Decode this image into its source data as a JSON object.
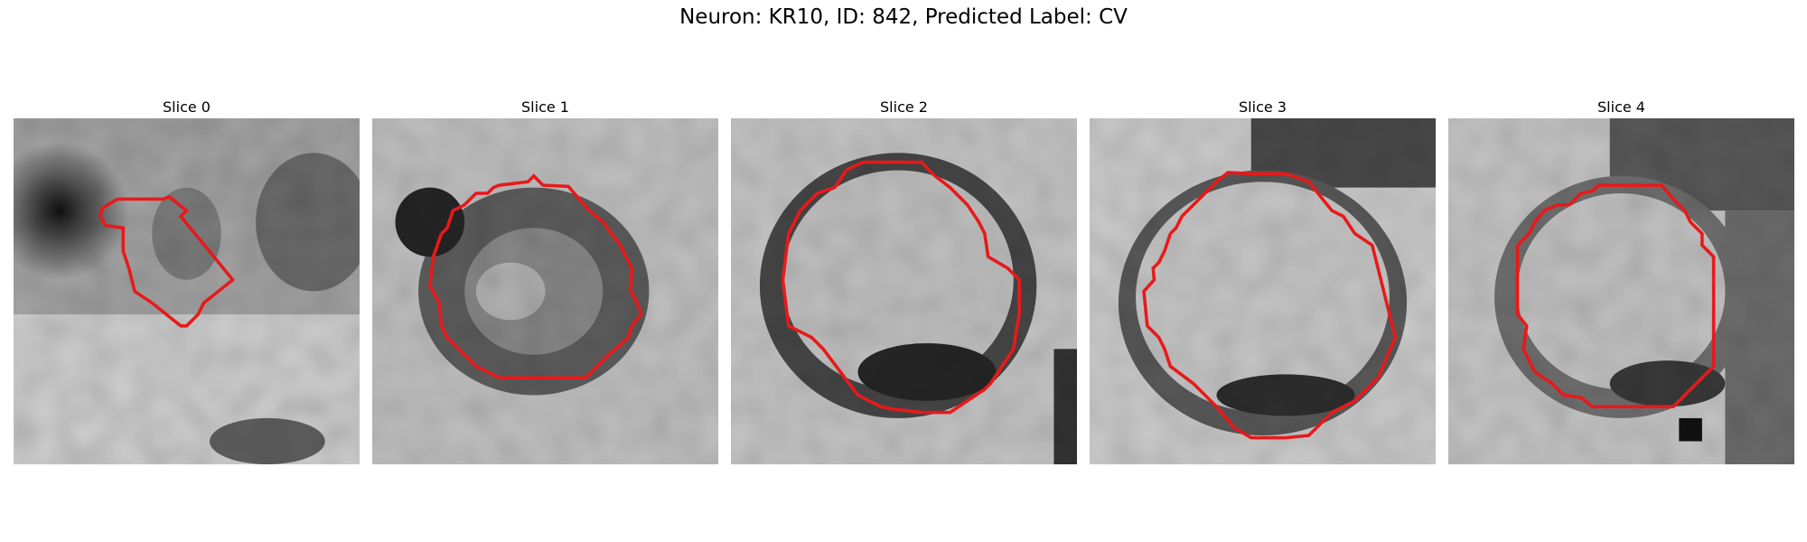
{
  "figure": {
    "title": "Neuron: KR10, ID: 842, Predicted Label: CV"
  },
  "panels": [
    {
      "title": "Slice 0"
    },
    {
      "title": "Slice 1"
    },
    {
      "title": "Slice 2"
    },
    {
      "title": "Slice 3"
    },
    {
      "title": "Slice 4"
    }
  ],
  "colors": {
    "contour": "#e8191a"
  }
}
